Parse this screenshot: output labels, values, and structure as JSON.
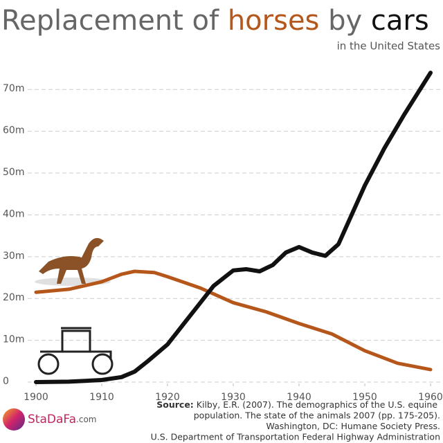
{
  "chart_data": {
    "type": "line",
    "title": [
      "Replacement of",
      "by"
    ],
    "subtitle": "in the United States",
    "series": [
      {
        "name": "horses",
        "color": "#b5561a",
        "x": [
          1900,
          1905,
          1910,
          1913,
          1915,
          1918,
          1920,
          1925,
          1930,
          1935,
          1940,
          1945,
          1950,
          1955,
          1960
        ],
        "values": [
          21.5,
          22.2,
          24,
          25.8,
          26.5,
          26.2,
          25.2,
          22.5,
          19,
          16.8,
          14,
          11.5,
          7.5,
          4.5,
          3
        ]
      },
      {
        "name": "cars",
        "color": "#111111",
        "x": [
          1900,
          1905,
          1910,
          1913,
          1915,
          1917,
          1920,
          1923,
          1925,
          1927,
          1930,
          1932,
          1934,
          1936,
          1938,
          1940,
          1942,
          1944,
          1946,
          1948,
          1950,
          1953,
          1956,
          1958,
          1960
        ],
        "values": [
          0,
          0.1,
          0.5,
          1.2,
          2.5,
          5,
          9,
          15,
          19,
          23,
          26.7,
          27,
          26.5,
          28,
          31,
          32.3,
          31,
          30.2,
          33,
          40,
          47,
          56,
          64,
          69,
          74
        ]
      }
    ],
    "xlim": [
      1900,
      1960
    ],
    "xticks": [
      1900,
      1910,
      1920,
      1930,
      1940,
      1950,
      1960
    ],
    "ylim": [
      0,
      76
    ],
    "yticks": [
      0,
      {
        "value": 10,
        "label": "10m"
      },
      {
        "value": 20,
        "label": "20m"
      },
      {
        "value": 30,
        "label": "30m"
      },
      {
        "value": 40,
        "label": "40m"
      },
      {
        "value": 50,
        "label": "50m"
      },
      {
        "value": 60,
        "label": "60m"
      },
      {
        "value": 70,
        "label": "70m"
      }
    ],
    "grid": true,
    "source": [
      "Source:",
      "Kilby, E.R. (2007). The demographics of the U.S. equine",
      "population. The state of the animals 2007 (pp. 175-205).",
      "Washington, DC: Humane Society Press.",
      "U.S. Department of Transportation Federal Highway Administration"
    ],
    "logo": [
      "StaDaFa",
      ".com"
    ]
  }
}
